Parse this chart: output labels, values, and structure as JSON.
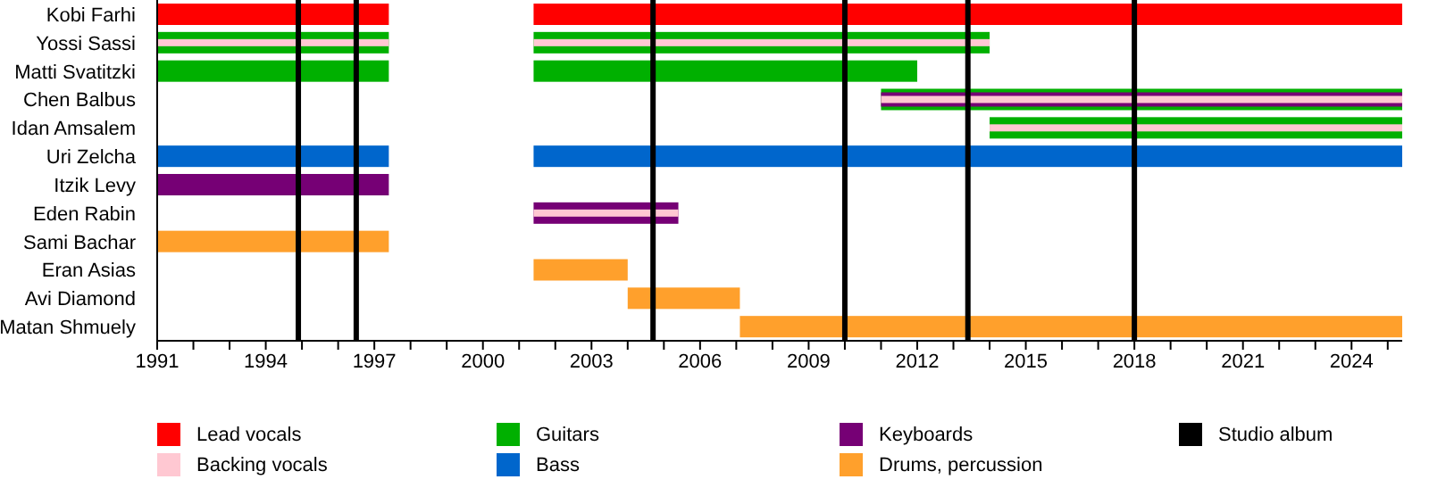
{
  "chart_data": {
    "type": "bar",
    "orientation": "horizontal",
    "categories": [
      "Kobi Farhi",
      "Yossi Sassi",
      "Matti Svatitzki",
      "Chen Balbus",
      "Idan Amsalem",
      "Uri Zelcha",
      "Itzik Levy",
      "Eden Rabin",
      "Sami Bachar",
      "Eran Asias",
      "Avi Diamond",
      "Matan Shmuely"
    ],
    "series": [
      {
        "name": "Lead vocals",
        "color": "#ff0000",
        "base": [
          1991,
          null,
          null,
          null,
          null,
          null,
          null,
          null,
          null,
          null,
          null,
          null
        ],
        "values": [
          6.4,
          null,
          null,
          null,
          null,
          null,
          null,
          null,
          null,
          null,
          null,
          null
        ]
      },
      {
        "color": "#ff0000",
        "base": [
          2001.4,
          null,
          null,
          null,
          null,
          null,
          null,
          null,
          null,
          null,
          null,
          null
        ],
        "values": [
          24.0,
          null,
          null,
          null,
          null,
          null,
          null,
          null,
          null,
          null,
          null,
          null
        ]
      },
      {
        "name": "Guitars",
        "color": "#00b000",
        "base": [
          null,
          1991,
          1991,
          null,
          null,
          null,
          null,
          null,
          null,
          null,
          null,
          null
        ],
        "values": [
          null,
          6.4,
          6.4,
          null,
          null,
          null,
          null,
          null,
          null,
          null,
          null,
          null
        ]
      },
      {
        "color": "#00b000",
        "base": [
          null,
          2001.4,
          2001.4,
          2011.0,
          2014.0,
          null,
          null,
          null,
          null,
          null,
          null,
          null
        ],
        "values": [
          null,
          12.6,
          10.6,
          14.4,
          11.4,
          null,
          null,
          null,
          null,
          null,
          null,
          null
        ]
      },
      {
        "name": "Keyboards",
        "color": "#760075",
        "base": [
          null,
          null,
          null,
          2011.0,
          null,
          null,
          1991,
          2001.4,
          null,
          null,
          null,
          null
        ],
        "values": [
          null,
          null,
          null,
          14.4,
          null,
          null,
          6.4,
          4.0,
          null,
          null,
          null,
          null
        ]
      },
      {
        "name": "Backing vocals",
        "color": "#ffc8d2",
        "base": [
          null,
          1991,
          null,
          null,
          null,
          null,
          null,
          null,
          null,
          null,
          null,
          null
        ],
        "values": [
          null,
          6.4,
          null,
          null,
          null,
          null,
          null,
          null,
          null,
          null,
          null,
          null
        ]
      },
      {
        "color": "#ffc8d2",
        "base": [
          null,
          2001.4,
          null,
          2011.0,
          2014.0,
          null,
          null,
          2001.4,
          null,
          null,
          null,
          null
        ],
        "values": [
          null,
          12.6,
          null,
          14.4,
          11.4,
          null,
          null,
          4.0,
          null,
          null,
          null,
          null
        ]
      },
      {
        "name": "Bass",
        "color": "#0066cc",
        "base": [
          null,
          null,
          null,
          null,
          null,
          1991,
          null,
          null,
          null,
          null,
          null,
          null
        ],
        "values": [
          null,
          null,
          null,
          null,
          null,
          6.4,
          null,
          null,
          null,
          null,
          null,
          null
        ]
      },
      {
        "color": "#0066cc",
        "base": [
          null,
          null,
          null,
          null,
          null,
          2001.4,
          null,
          null,
          null,
          null,
          null,
          null
        ],
        "values": [
          null,
          null,
          null,
          null,
          null,
          24.0,
          null,
          null,
          null,
          null,
          null,
          null
        ]
      },
      {
        "name": "Drums, percussion",
        "color": "#ffa02c",
        "base": [
          null,
          null,
          null,
          null,
          null,
          null,
          null,
          null,
          1991,
          2001.4,
          2004.0,
          2007.1
        ],
        "values": [
          null,
          null,
          null,
          null,
          null,
          null,
          null,
          null,
          6.4,
          2.6,
          3.1,
          18.3
        ]
      }
    ],
    "xlim": [
      1991,
      2025.4
    ],
    "xticks": [
      1991,
      {
        "value": 1992,
        "label": null
      },
      {
        "value": 1993,
        "label": null
      },
      1994,
      {
        "value": 1995,
        "label": null
      },
      {
        "value": 1996,
        "label": null
      },
      1997,
      {
        "value": 1998,
        "label": null
      },
      {
        "value": 1999,
        "label": null
      },
      2000,
      {
        "value": 2001,
        "label": null
      },
      {
        "value": 2002,
        "label": null
      },
      2003,
      {
        "value": 2004,
        "label": null
      },
      {
        "value": 2005,
        "label": null
      },
      2006,
      {
        "value": 2007,
        "label": null
      },
      {
        "value": 2008,
        "label": null
      },
      2009,
      {
        "value": 2010,
        "label": null
      },
      {
        "value": 2011,
        "label": null
      },
      2012,
      {
        "value": 2013,
        "label": null
      },
      {
        "value": 2014,
        "label": null
      },
      2015,
      {
        "value": 2016,
        "label": null
      },
      {
        "value": 2017,
        "label": null
      },
      2018,
      {
        "value": 2019,
        "label": null
      },
      {
        "value": 2020,
        "label": null
      },
      2021,
      {
        "value": 2022,
        "label": null
      },
      {
        "value": 2023,
        "label": null
      },
      2024,
      {
        "value": 2025,
        "label": null
      }
    ],
    "ref_lines": [
      {
        "axis": "x",
        "value": 1994.9,
        "label": "Studio album",
        "color": "#000000"
      },
      {
        "axis": "x",
        "value": 1996.5,
        "color": "#000000"
      },
      {
        "axis": "x",
        "value": 2004.7,
        "color": "#000000"
      },
      {
        "axis": "x",
        "value": 2010.0,
        "color": "#000000"
      },
      {
        "axis": "x",
        "value": 2013.4,
        "color": "#000000"
      },
      {
        "axis": "x",
        "value": 2018.0,
        "color": "#000000"
      }
    ],
    "legend": "bottom"
  }
}
